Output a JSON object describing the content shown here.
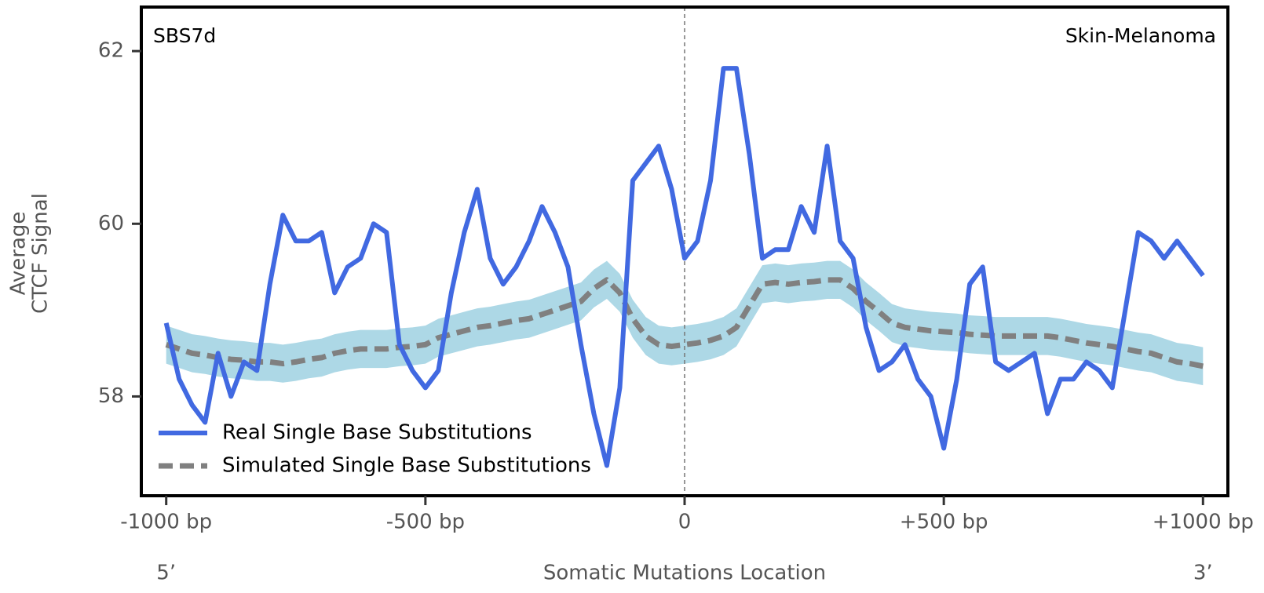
{
  "chart_data": {
    "type": "line",
    "title": "SBS7d",
    "subtitle": "Skin-Melanoma",
    "xlabel": "Somatic Mutations Location",
    "ylabel": [
      "Average",
      "CTCF Signal"
    ],
    "annotations": [
      "5’",
      "3’"
    ],
    "x": [
      -1000,
      -975,
      -950,
      -925,
      -900,
      -875,
      -850,
      -825,
      -800,
      -775,
      -750,
      -725,
      -700,
      -675,
      -650,
      -625,
      -600,
      -575,
      -550,
      -525,
      -500,
      -475,
      -450,
      -425,
      -400,
      -375,
      -350,
      -325,
      -300,
      -275,
      -250,
      -225,
      -200,
      -175,
      -150,
      -125,
      -100,
      -75,
      -50,
      -25,
      0,
      25,
      50,
      75,
      100,
      125,
      150,
      175,
      200,
      225,
      250,
      275,
      300,
      325,
      350,
      375,
      400,
      425,
      450,
      475,
      500,
      525,
      550,
      575,
      600,
      625,
      650,
      675,
      700,
      725,
      750,
      775,
      800,
      825,
      850,
      875,
      900,
      925,
      950,
      975,
      1000
    ],
    "series": [
      {
        "name": "Real Single Base Substitutions",
        "color": "#4169e1",
        "dash": false,
        "values": [
          58.85,
          58.2,
          57.9,
          57.7,
          58.5,
          58.0,
          58.4,
          58.3,
          59.3,
          60.1,
          59.8,
          59.8,
          59.9,
          59.2,
          59.5,
          59.6,
          60.0,
          59.9,
          58.6,
          58.3,
          58.1,
          58.3,
          59.2,
          59.9,
          60.4,
          59.6,
          59.3,
          59.5,
          59.8,
          60.2,
          59.9,
          59.5,
          58.6,
          57.8,
          57.2,
          58.1,
          60.5,
          60.7,
          60.9,
          60.4,
          59.6,
          59.8,
          60.5,
          61.8,
          61.8,
          60.8,
          59.6,
          59.7,
          59.7,
          60.2,
          59.9,
          60.9,
          59.8,
          59.6,
          58.8,
          58.3,
          58.4,
          58.6,
          58.2,
          58.0,
          57.4,
          58.2,
          59.3,
          59.5,
          58.4,
          58.3,
          58.4,
          58.5,
          57.8,
          58.2,
          58.2,
          58.4,
          58.3,
          58.1,
          59.0,
          59.9,
          59.8,
          59.6,
          59.8,
          59.6,
          59.4
        ]
      },
      {
        "name": "Simulated Single Base Substitutions",
        "color": "#808080",
        "dash": true,
        "band_color": "#add8e6",
        "error": 0.22,
        "values": [
          58.6,
          58.55,
          58.5,
          58.48,
          58.45,
          58.43,
          58.42,
          58.4,
          58.4,
          58.38,
          58.4,
          58.43,
          58.45,
          58.5,
          58.53,
          58.55,
          58.55,
          58.55,
          58.57,
          58.58,
          58.6,
          58.68,
          58.72,
          58.76,
          58.8,
          58.82,
          58.85,
          58.88,
          58.9,
          58.95,
          59.0,
          59.05,
          59.1,
          59.25,
          59.35,
          59.2,
          58.9,
          58.7,
          58.6,
          58.58,
          58.6,
          58.62,
          58.65,
          58.7,
          58.8,
          59.05,
          59.3,
          59.32,
          59.3,
          59.32,
          59.33,
          59.35,
          59.35,
          59.25,
          59.1,
          58.98,
          58.85,
          58.8,
          58.78,
          58.76,
          58.75,
          58.74,
          58.72,
          58.71,
          58.7,
          58.7,
          58.7,
          58.7,
          58.7,
          58.68,
          58.65,
          58.62,
          58.6,
          58.58,
          58.55,
          58.52,
          58.5,
          58.45,
          58.4,
          58.38,
          58.35
        ]
      }
    ],
    "xlim": [
      -1048,
      1048
    ],
    "ylim": [
      56.85,
      62.51
    ],
    "xticks": [
      {
        "value": -1000,
        "label": "-1000 bp"
      },
      {
        "value": -500,
        "label": "-500 bp"
      },
      0,
      {
        "value": 500,
        "label": "+500 bp"
      },
      {
        "value": 1000,
        "label": "+1000 bp"
      }
    ],
    "yticks": [
      58,
      60,
      62
    ],
    "vline": 0,
    "grid": false,
    "legend": "lower left"
  }
}
